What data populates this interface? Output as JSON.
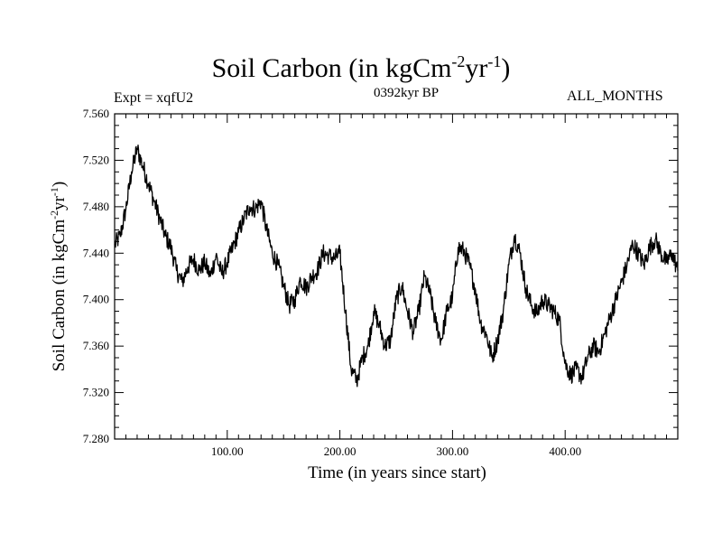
{
  "header": {
    "title_main": "Soil Carbon (in kgCm",
    "title_sup1": "-2",
    "title_mid": "yr",
    "title_sup2": "-1",
    "title_end": ")",
    "expt_label": "Expt = xqfU2",
    "period_label": "0392kyr BP",
    "season_label": "ALL_MONTHS"
  },
  "axes": {
    "xlabel": "Time (in years since start)",
    "ylabel_main": "Soil Carbon (in kgCm",
    "ylabel_sup1": "-2",
    "ylabel_mid": "yr",
    "ylabel_sup2": "-1",
    "ylabel_end": ")"
  },
  "chart_data": {
    "type": "line",
    "title": "Soil Carbon (in kgCm-2yr-1)",
    "xlabel": "Time (in years since start)",
    "ylabel": "Soil Carbon (in kgCm-2yr-1)",
    "xlim": [
      0,
      500
    ],
    "ylim": [
      7.28,
      7.56
    ],
    "x_ticks": [
      100,
      200,
      300,
      400
    ],
    "x_tick_labels": [
      "100.00",
      "200.00",
      "300.00",
      "400.00"
    ],
    "y_ticks": [
      7.28,
      7.32,
      7.36,
      7.4,
      7.44,
      7.48,
      7.52,
      7.56
    ],
    "y_tick_labels": [
      "7.280",
      "7.320",
      "7.360",
      "7.400",
      "7.440",
      "7.480",
      "7.520",
      "7.560"
    ],
    "grid": false,
    "series": [
      {
        "name": "Soil Carbon",
        "x": [
          0,
          5,
          10,
          15,
          20,
          25,
          30,
          35,
          40,
          45,
          50,
          55,
          60,
          65,
          70,
          75,
          80,
          85,
          90,
          95,
          100,
          105,
          110,
          115,
          120,
          125,
          130,
          135,
          140,
          145,
          150,
          155,
          160,
          165,
          170,
          175,
          180,
          185,
          190,
          195,
          200,
          205,
          210,
          215,
          220,
          225,
          230,
          235,
          240,
          245,
          250,
          255,
          260,
          265,
          270,
          275,
          280,
          285,
          290,
          295,
          300,
          305,
          310,
          315,
          320,
          325,
          330,
          335,
          340,
          345,
          350,
          355,
          360,
          365,
          370,
          375,
          380,
          385,
          390,
          395,
          400,
          405,
          410,
          415,
          420,
          425,
          430,
          435,
          440,
          445,
          450,
          455,
          460,
          465,
          470,
          475,
          480,
          485,
          490,
          495,
          500
        ],
        "values": [
          7.447,
          7.455,
          7.478,
          7.51,
          7.53,
          7.515,
          7.5,
          7.485,
          7.47,
          7.455,
          7.445,
          7.425,
          7.415,
          7.428,
          7.435,
          7.425,
          7.432,
          7.42,
          7.438,
          7.422,
          7.432,
          7.445,
          7.458,
          7.47,
          7.48,
          7.478,
          7.485,
          7.46,
          7.44,
          7.43,
          7.412,
          7.395,
          7.4,
          7.418,
          7.41,
          7.42,
          7.425,
          7.44,
          7.438,
          7.435,
          7.44,
          7.39,
          7.34,
          7.33,
          7.35,
          7.36,
          7.39,
          7.378,
          7.36,
          7.365,
          7.4,
          7.412,
          7.39,
          7.372,
          7.39,
          7.42,
          7.405,
          7.38,
          7.365,
          7.39,
          7.402,
          7.445,
          7.442,
          7.43,
          7.41,
          7.38,
          7.37,
          7.35,
          7.365,
          7.39,
          7.43,
          7.455,
          7.44,
          7.41,
          7.395,
          7.388,
          7.4,
          7.395,
          7.39,
          7.382,
          7.345,
          7.335,
          7.34,
          7.333,
          7.35,
          7.36,
          7.355,
          7.37,
          7.385,
          7.4,
          7.415,
          7.43,
          7.448,
          7.44,
          7.43,
          7.445,
          7.452,
          7.44,
          7.432,
          7.44,
          7.425
        ]
      }
    ]
  }
}
